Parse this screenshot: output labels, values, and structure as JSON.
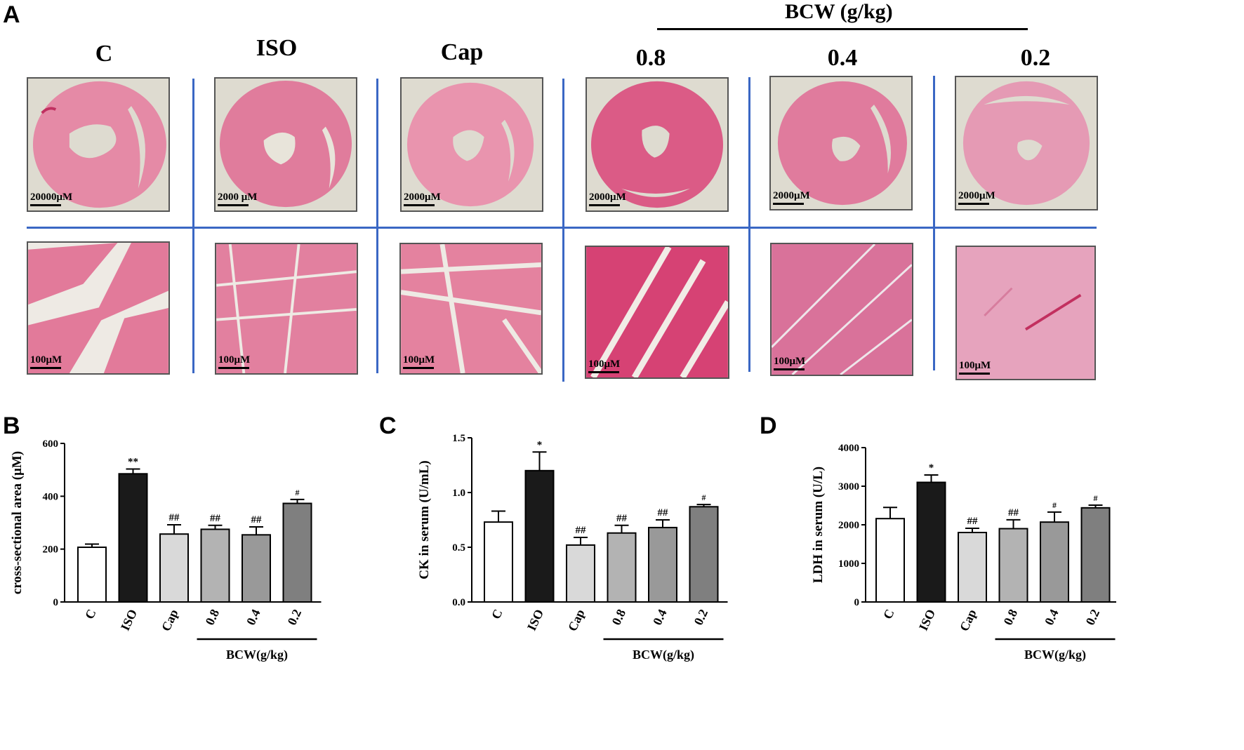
{
  "figure": {
    "panel_a": {
      "letter": "A",
      "bcw_title": "BCW (g/kg)",
      "groups": [
        "C",
        "ISO",
        "Cap",
        "0.8",
        "0.4",
        "0.2"
      ],
      "top_scale_labels": [
        "20000μM",
        "2000 μM",
        "2000μM",
        "2000μM",
        "2000μM",
        "2000μM"
      ],
      "bottom_scale_labels": [
        "100μM",
        "100μM",
        "100μM",
        "100μM",
        "100μM",
        "100μM"
      ]
    },
    "colors": {
      "tissue_pink": "#e58aa6",
      "tissue_dark": "#d1537a",
      "divider_blue": "#3a67c4",
      "bar_fills": [
        "#ffffff",
        "#1a1a1a",
        "#d9d9d9",
        "#b3b3b3",
        "#999999",
        "#7f7f7f"
      ]
    }
  },
  "chart_data": [
    {
      "panel": "B",
      "type": "bar",
      "categories": [
        "C",
        "ISO",
        "Cap",
        "0.8",
        "0.4",
        "0.2"
      ],
      "values": [
        207,
        485,
        257,
        275,
        254,
        373
      ],
      "errors": [
        12,
        18,
        35,
        15,
        30,
        15
      ],
      "annotations": [
        "",
        "**",
        "##",
        "##",
        "##",
        "#"
      ],
      "ylabel": "cross-sectional area  (μM)",
      "ylim": [
        0,
        600
      ],
      "yticks": [
        0,
        200,
        400,
        600
      ],
      "ytick_labels": [
        "0",
        "200",
        "400",
        "600"
      ],
      "group_label": "BCW(g/kg)"
    },
    {
      "panel": "C",
      "type": "bar",
      "categories": [
        "C",
        "ISO",
        "Cap",
        "0.8",
        "0.4",
        "0.2"
      ],
      "values": [
        0.73,
        1.2,
        0.52,
        0.63,
        0.68,
        0.87
      ],
      "errors": [
        0.1,
        0.17,
        0.07,
        0.07,
        0.07,
        0.02
      ],
      "annotations": [
        "",
        "*",
        "##",
        "##",
        "##",
        "#"
      ],
      "ylabel": "CK in serum (U/mL)",
      "ylim": [
        0,
        1.5
      ],
      "yticks": [
        0,
        0.5,
        1.0,
        1.5
      ],
      "ytick_labels": [
        "0.0",
        "0.5",
        "1.0",
        "1.5"
      ],
      "group_label": "BCW(g/kg)"
    },
    {
      "panel": "D",
      "type": "bar",
      "categories": [
        "C",
        "ISO",
        "Cap",
        "0.8",
        "0.4",
        "0.2"
      ],
      "values": [
        2160,
        3100,
        1800,
        1900,
        2070,
        2440
      ],
      "errors": [
        290,
        190,
        110,
        230,
        260,
        70
      ],
      "annotations": [
        "",
        "*",
        "##",
        "##",
        "#",
        "#"
      ],
      "ylabel": "LDH in serum (U/L)",
      "ylim": [
        0,
        4000
      ],
      "yticks": [
        0,
        1000,
        2000,
        3000,
        4000
      ],
      "ytick_labels": [
        "0",
        "1000",
        "2000",
        "3000",
        "4000"
      ],
      "group_label": "BCW(g/kg)"
    }
  ]
}
